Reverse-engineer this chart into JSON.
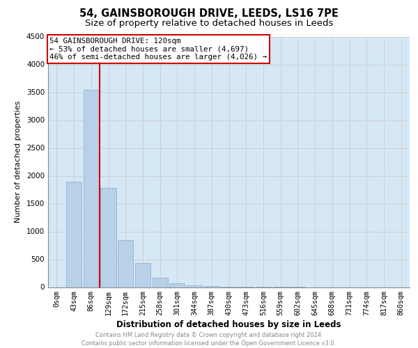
{
  "title1": "54, GAINSBOROUGH DRIVE, LEEDS, LS16 7PE",
  "title2": "Size of property relative to detached houses in Leeds",
  "xlabel": "Distribution of detached houses by size in Leeds",
  "ylabel": "Number of detached properties",
  "categories": [
    "0sqm",
    "43sqm",
    "86sqm",
    "129sqm",
    "172sqm",
    "215sqm",
    "258sqm",
    "301sqm",
    "344sqm",
    "387sqm",
    "430sqm",
    "473sqm",
    "516sqm",
    "559sqm",
    "602sqm",
    "645sqm",
    "688sqm",
    "731sqm",
    "774sqm",
    "817sqm",
    "860sqm"
  ],
  "values": [
    0,
    1900,
    3550,
    1780,
    840,
    430,
    170,
    70,
    30,
    15,
    5,
    3,
    2,
    1,
    1,
    0,
    0,
    0,
    0,
    0,
    0
  ],
  "bar_color": "#b8d0e8",
  "bar_edge_color": "#90b4d4",
  "annotation_text1": "54 GAINSBOROUGH DRIVE: 120sqm",
  "annotation_text2": "← 53% of detached houses are smaller (4,697)",
  "annotation_text3": "46% of semi-detached houses are larger (4,026) →",
  "vline_color": "#cc0000",
  "vline_x": 2.5,
  "ylim": [
    0,
    4500
  ],
  "yticks": [
    0,
    500,
    1000,
    1500,
    2000,
    2500,
    3000,
    3500,
    4000,
    4500
  ],
  "footer1": "Contains HM Land Registry data © Crown copyright and database right 2024.",
  "footer2": "Contains public sector information licensed under the Open Government Licence v3.0.",
  "grid_color": "#cccccc",
  "background_color": "#d6e8f5"
}
